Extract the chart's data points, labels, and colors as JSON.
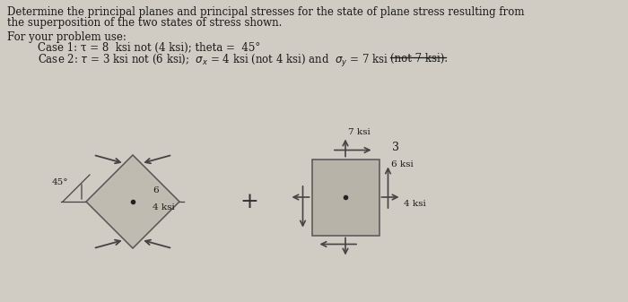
{
  "bg_color": "#d0ccc4",
  "text_color": "#1a1a1a",
  "title_line1": "Determine the principal planes and principal stresses for the state of plane stress resulting from",
  "title_line2": "the superposition of the two states of stress shown.",
  "for_your_problem": "For your problem use:",
  "case1": "Case 1: τ = 8  ksi not (4 ksi); theta =  45°",
  "diamond_color": "#c0bbb0",
  "rect_color": "#b8b3a8",
  "arrow_color": "#444444",
  "label_color": "#1a1a1a"
}
